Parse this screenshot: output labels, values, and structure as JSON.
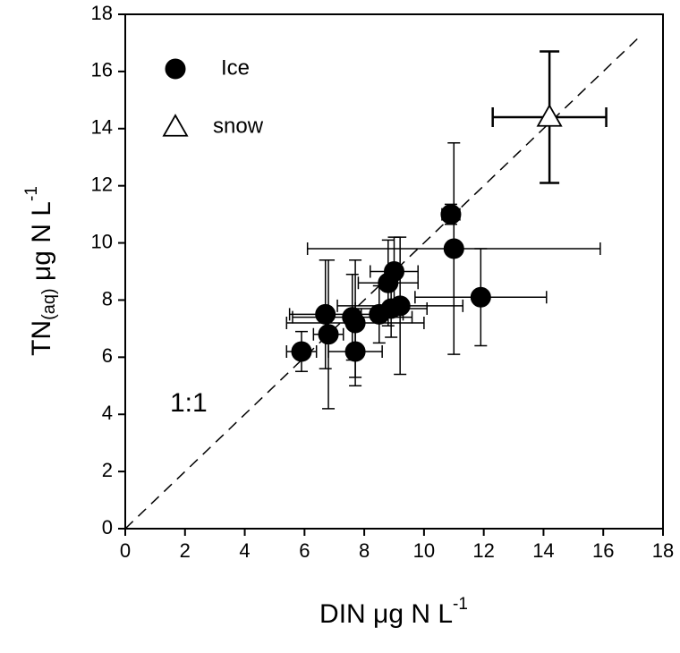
{
  "chart_data": {
    "type": "scatter",
    "xlabel": {
      "text": "DIN μg N L",
      "sup": "-1"
    },
    "ylabel": {
      "main": "TN",
      "sub": "(aq)",
      "rest": " μg N L",
      "sup": "-1"
    },
    "xlim": [
      0,
      18
    ],
    "ylim": [
      0,
      18
    ],
    "xticks": [
      0,
      2,
      4,
      6,
      8,
      10,
      12,
      14,
      16,
      18
    ],
    "yticks": [
      0,
      2,
      4,
      6,
      8,
      10,
      12,
      14,
      16,
      18
    ],
    "reference_line": {
      "label": "1:1",
      "from": [
        0,
        0
      ],
      "to": [
        17.2,
        17.2
      ]
    },
    "series": [
      {
        "name": "Ice",
        "color": "#000000",
        "marker": "circle",
        "x": [
          5.9,
          6.7,
          6.8,
          7.6,
          7.7,
          7.7,
          8.5,
          8.8,
          9.0,
          8.9,
          9.2,
          10.9,
          11.0,
          11.9
        ],
        "values": [
          6.2,
          7.5,
          6.8,
          7.4,
          7.2,
          6.2,
          7.5,
          8.6,
          9.0,
          7.7,
          7.8,
          11.0,
          9.8,
          8.1
        ],
        "xerr": [
          0.5,
          1.2,
          0.5,
          2.0,
          2.3,
          0.9,
          0.8,
          1.0,
          0.8,
          1.2,
          2.1,
          0.3,
          4.9,
          2.2
        ],
        "yerr": [
          0.7,
          1.9,
          2.6,
          1.5,
          2.2,
          0.9,
          1.0,
          1.5,
          1.2,
          1.0,
          2.4,
          0.35,
          3.7,
          1.7
        ]
      },
      {
        "name": "snow",
        "color": "#ffffff",
        "marker": "triangle",
        "x": [
          14.2
        ],
        "values": [
          14.4
        ],
        "xerr": [
          1.9
        ],
        "yerr": [
          2.3
        ]
      }
    ]
  }
}
